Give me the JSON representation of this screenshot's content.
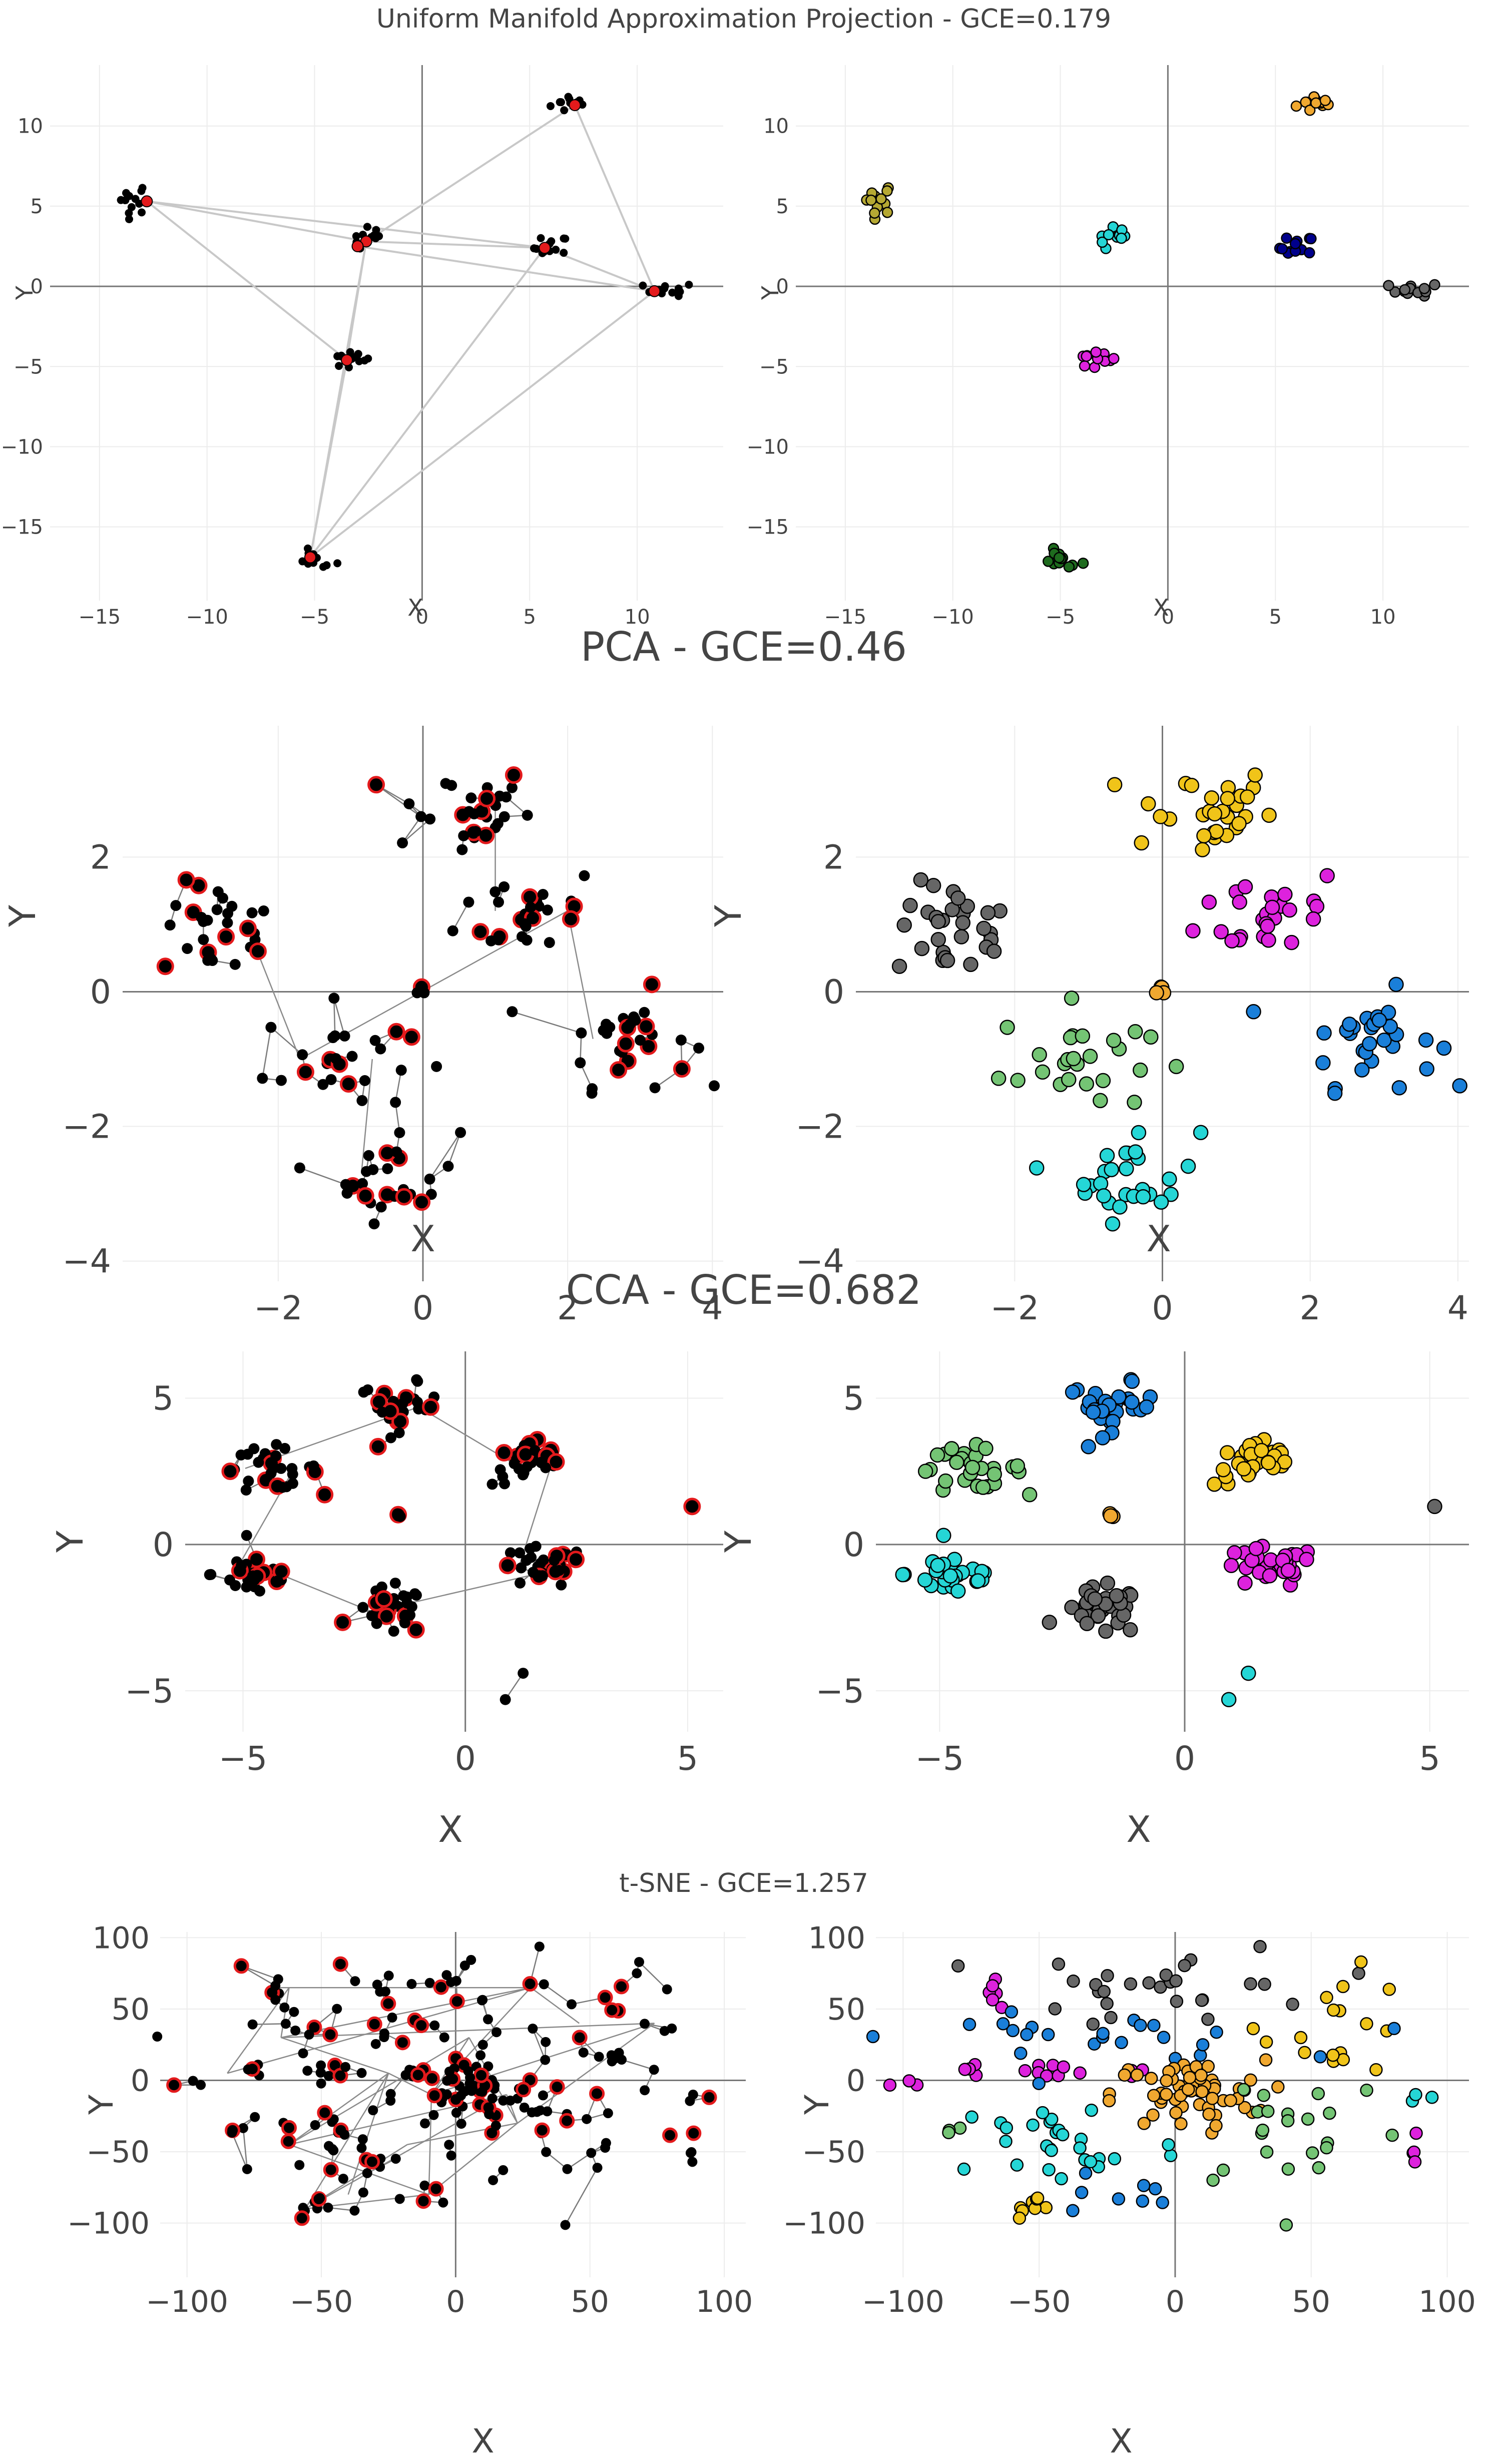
{
  "colors": {
    "edge_node": "#000000",
    "high_error": "#e31a1c",
    "edge_line": "#c8c8c8",
    "grid": "#ececec",
    "axis_zero": "#777777",
    "text": "#444444",
    "clusters": [
      "#f0a830",
      "#1a7fd9",
      "#f0c419",
      "#dd22dd",
      "#25d6d6",
      "#74c474",
      "#666666",
      "#00008b",
      "#1e6b1e",
      "#b5a833"
    ]
  },
  "chart_data": [
    {
      "type": "scatter",
      "title": "Uniform Manifold Approximation Projection - GCE=0.179",
      "xlabel": "X",
      "ylabel": "Y",
      "xlim": [
        -17.3,
        14
      ],
      "ylim": [
        -19.6,
        13.8
      ],
      "xticks": [
        -15,
        -10,
        -5,
        0,
        5,
        10
      ],
      "yticks": [
        -15,
        -10,
        -5,
        0,
        5,
        10
      ],
      "xtick_labels": [
        "−15",
        "−10",
        "−5",
        "0",
        "5",
        "10"
      ],
      "ytick_labels": [
        "−15",
        "−10",
        "−5",
        "0",
        "5",
        "10"
      ],
      "clusters": [
        {
          "name": "c1",
          "x": 7.0,
          "y": 11.4,
          "spread": [
            0.5,
            0.3
          ],
          "n": 12,
          "color": 0
        },
        {
          "name": "c2",
          "x": -13.5,
          "y": 5.5,
          "spread": [
            0.4,
            0.5
          ],
          "n": 12,
          "color": 9
        },
        {
          "name": "c3",
          "x": -2.4,
          "y": 2.9,
          "spread": [
            0.4,
            0.4
          ],
          "n": 10,
          "color": 4
        },
        {
          "name": "c4",
          "x": 6.0,
          "y": 2.4,
          "spread": [
            0.4,
            0.4
          ],
          "n": 12,
          "color": 7
        },
        {
          "name": "c5",
          "x": 11.5,
          "y": -0.2,
          "spread": [
            0.6,
            0.2
          ],
          "n": 12,
          "color": 6
        },
        {
          "name": "c6",
          "x": -3.4,
          "y": -4.6,
          "spread": [
            0.5,
            0.3
          ],
          "n": 12,
          "color": 3
        },
        {
          "name": "c7",
          "x": -5.0,
          "y": -17.1,
          "spread": [
            0.5,
            0.3
          ],
          "n": 12,
          "color": 8
        }
      ],
      "red_nodes": [
        [
          7.1,
          11.3
        ],
        [
          -12.8,
          5.3
        ],
        [
          -2.6,
          2.8
        ],
        [
          -3.0,
          2.5
        ],
        [
          5.7,
          2.4
        ],
        [
          10.8,
          -0.3
        ],
        [
          -3.5,
          -4.6
        ],
        [
          -5.2,
          -16.9
        ]
      ],
      "edges": [
        [
          -2.6,
          2.8,
          7.1,
          11.3
        ],
        [
          7.1,
          11.3,
          10.8,
          -0.3
        ],
        [
          -12.8,
          5.3,
          5.7,
          2.4
        ],
        [
          -12.8,
          5.3,
          -2.6,
          2.8
        ],
        [
          -12.8,
          5.3,
          -3.5,
          -4.6
        ],
        [
          -2.6,
          2.8,
          5.7,
          2.4
        ],
        [
          -3.0,
          2.5,
          10.8,
          -0.3
        ],
        [
          5.7,
          2.4,
          10.8,
          -0.3
        ],
        [
          -2.6,
          2.8,
          -3.5,
          -4.6
        ],
        [
          -5.2,
          -16.9,
          -3.5,
          -4.6
        ],
        [
          -5.2,
          -16.9,
          10.8,
          -0.3
        ],
        [
          -5.2,
          -16.9,
          5.7,
          2.4
        ],
        [
          -5.2,
          -16.9,
          -2.6,
          2.8
        ]
      ]
    },
    {
      "type": "scatter",
      "title": "PCA - GCE=0.46",
      "xlabel": "X",
      "ylabel": "Y",
      "xlim": [
        -4.15,
        4.15
      ],
      "ylim": [
        -4.3,
        3.95
      ],
      "xticks": [
        -2,
        0,
        2,
        4
      ],
      "yticks": [
        -4,
        -2,
        0,
        2
      ],
      "xtick_labels": [
        "−2",
        "0",
        "2",
        "4"
      ],
      "ytick_labels": [
        "−4",
        "−2",
        "0",
        "2"
      ],
      "clusters": [
        {
          "name": "gray",
          "x": -2.8,
          "y": 0.9,
          "spread": [
            0.4,
            0.35
          ],
          "n": 30,
          "color": 6
        },
        {
          "name": "yellow",
          "x": 0.5,
          "y": 2.7,
          "spread": [
            0.5,
            0.35
          ],
          "n": 30,
          "color": 2
        },
        {
          "name": "magenta",
          "x": 1.5,
          "y": 1.2,
          "spread": [
            0.5,
            0.35
          ],
          "n": 28,
          "color": 3
        },
        {
          "name": "blue",
          "x": 2.8,
          "y": -0.7,
          "spread": [
            0.45,
            0.35
          ],
          "n": 30,
          "color": 1
        },
        {
          "name": "green",
          "x": -1.2,
          "y": -1.0,
          "spread": [
            0.5,
            0.4
          ],
          "n": 26,
          "color": 5
        },
        {
          "name": "cyan",
          "x": -0.4,
          "y": -2.7,
          "spread": [
            0.45,
            0.35
          ],
          "n": 28,
          "color": 4
        },
        {
          "name": "orange",
          "x": 0.0,
          "y": 0.0,
          "spread": [
            0.04,
            0.04
          ],
          "n": 4,
          "color": 0
        }
      ]
    },
    {
      "type": "scatter",
      "title": "CCA - GCE=0.682",
      "xlabel": "X",
      "ylabel": "Y",
      "xlim": [
        -6.3,
        5.8
      ],
      "ylim": [
        -6.4,
        6.6
      ],
      "xticks": [
        -5,
        0,
        5
      ],
      "yticks": [
        -5,
        0,
        5
      ],
      "xtick_labels": [
        "−5",
        "0",
        "5"
      ],
      "ytick_labels": [
        "−5",
        "0",
        "5"
      ],
      "clusters": [
        {
          "name": "blue",
          "x": -1.5,
          "y": 4.7,
          "spread": [
            0.45,
            0.4
          ],
          "n": 30,
          "color": 1
        },
        {
          "name": "green",
          "x": -4.4,
          "y": 2.6,
          "spread": [
            0.55,
            0.35
          ],
          "n": 30,
          "color": 5
        },
        {
          "name": "yellow",
          "x": 1.5,
          "y": 2.8,
          "spread": [
            0.45,
            0.4
          ],
          "n": 30,
          "color": 2
        },
        {
          "name": "cyan",
          "x": -4.7,
          "y": -1.0,
          "spread": [
            0.5,
            0.4
          ],
          "n": 30,
          "color": 4
        },
        {
          "name": "magenta",
          "x": 1.7,
          "y": -0.8,
          "spread": [
            0.5,
            0.35
          ],
          "n": 30,
          "color": 3
        },
        {
          "name": "gray",
          "x": -1.7,
          "y": -2.3,
          "spread": [
            0.4,
            0.4
          ],
          "n": 30,
          "color": 6
        },
        {
          "name": "orange",
          "x": -1.5,
          "y": 1.0,
          "spread": [
            0.04,
            0.04
          ],
          "n": 4,
          "color": 0
        },
        {
          "name": "outliers",
          "x": 5.1,
          "y": 1.3,
          "spread": [
            0,
            0
          ],
          "n": 1,
          "color": 6
        },
        {
          "name": "cyan-out1",
          "x": 1.3,
          "y": -4.4,
          "spread": [
            0,
            0
          ],
          "n": 1,
          "color": 4
        },
        {
          "name": "cyan-out2",
          "x": 0.9,
          "y": -5.3,
          "spread": [
            0,
            0
          ],
          "n": 1,
          "color": 4
        }
      ]
    },
    {
      "type": "scatter",
      "title": "t-SNE - GCE=1.257",
      "xlabel": "X",
      "ylabel": "Y",
      "xlim": [
        -110,
        108
      ],
      "ylim": [
        -138,
        104
      ],
      "xticks": [
        -100,
        -50,
        0,
        50,
        100
      ],
      "yticks": [
        -100,
        -50,
        0,
        50,
        100
      ],
      "xtick_labels": [
        "−100",
        "−50",
        "0",
        "50",
        "100"
      ],
      "ytick_labels": [
        "−100",
        "−50",
        "0",
        "50",
        "100"
      ],
      "clusters": [
        {
          "name": "gray",
          "x": 0,
          "y": 65,
          "spread": [
            28,
            15
          ],
          "n": 28,
          "color": 6
        },
        {
          "name": "yellow",
          "x": 60,
          "y": 40,
          "spread": [
            14,
            18
          ],
          "n": 18,
          "color": 2
        },
        {
          "name": "magenta-a",
          "x": -65,
          "y": 65,
          "spread": [
            3,
            8
          ],
          "n": 6,
          "color": 3
        },
        {
          "name": "magenta-b",
          "x": -55,
          "y": 5,
          "spread": [
            30,
            4
          ],
          "n": 18,
          "color": 3
        },
        {
          "name": "magenta-c",
          "x": 88,
          "y": -45,
          "spread": [
            2,
            5
          ],
          "n": 4,
          "color": 3
        },
        {
          "name": "blue",
          "x": -30,
          "y": 30,
          "spread": [
            35,
            8
          ],
          "n": 24,
          "color": 1
        },
        {
          "name": "blue-b",
          "x": -25,
          "y": -80,
          "spread": [
            15,
            10
          ],
          "n": 8,
          "color": 1
        },
        {
          "name": "orange",
          "x": 5,
          "y": -10,
          "spread": [
            14,
            12
          ],
          "n": 60,
          "color": 0
        },
        {
          "name": "cyan",
          "x": -40,
          "y": -45,
          "spread": [
            22,
            18
          ],
          "n": 28,
          "color": 4
        },
        {
          "name": "cyan-b",
          "x": 88,
          "y": -10,
          "spread": [
            3,
            3
          ],
          "n": 3,
          "color": 4
        },
        {
          "name": "green",
          "x": 45,
          "y": -30,
          "spread": [
            22,
            25
          ],
          "n": 22,
          "color": 5
        },
        {
          "name": "green-b",
          "x": -85,
          "y": -35,
          "spread": [
            4,
            2
          ],
          "n": 3,
          "color": 5
        },
        {
          "name": "yellow-b",
          "x": -50,
          "y": -90,
          "spread": [
            6,
            4
          ],
          "n": 8,
          "color": 2
        }
      ]
    }
  ]
}
